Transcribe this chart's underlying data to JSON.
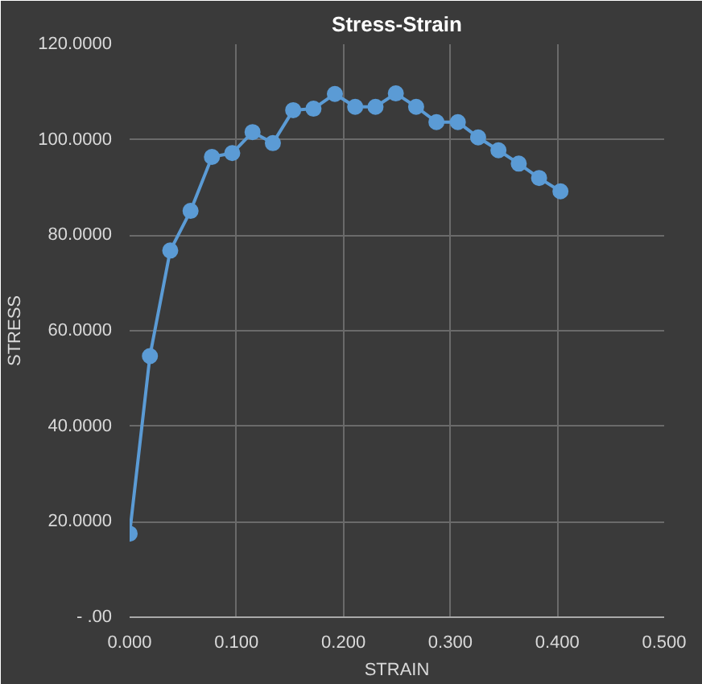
{
  "chart_data": {
    "type": "line",
    "title": "Stress-Strain",
    "xlabel": "STRAIN",
    "ylabel": "STRESS",
    "x": [
      0,
      0.019,
      0.038,
      0.057,
      0.077,
      0.096,
      0.115,
      0.134,
      0.153,
      0.172,
      0.192,
      0.211,
      0.23,
      0.249,
      0.268,
      0.287,
      0.307,
      0.326,
      0.345,
      0.364,
      0.383,
      0.403
    ],
    "series": [
      {
        "color": "#5b9bd5",
        "values": [
          17.5,
          54.7,
          76.8,
          85.1,
          96.4,
          97.2,
          101.6,
          99.3,
          106.2,
          106.5,
          109.6,
          106.9,
          106.9,
          109.7,
          106.9,
          103.7,
          103.7,
          100.5,
          97.8,
          95.0,
          92.0,
          89.2
        ]
      }
    ],
    "xlim": [
      0,
      0.5
    ],
    "xticks": [
      {
        "value": 0,
        "label": "0.000"
      },
      {
        "value": 0.1,
        "label": "0.100"
      },
      {
        "value": 0.2,
        "label": "0.200"
      },
      {
        "value": 0.3,
        "label": "0.300"
      },
      {
        "value": 0.4,
        "label": "0.400"
      },
      {
        "value": 0.5,
        "label": "0.500"
      }
    ],
    "ylim": [
      0,
      120
    ],
    "yticks": [
      {
        "value": 0,
        "label": "- .00"
      },
      {
        "value": 20,
        "label": "20.0000"
      },
      {
        "value": 40,
        "label": "40.0000"
      },
      {
        "value": 60,
        "label": "60.0000"
      },
      {
        "value": 80,
        "label": "80.0000"
      },
      {
        "value": 100,
        "label": "100.0000"
      },
      {
        "value": 120,
        "label": "120.0000"
      }
    ],
    "grid": true,
    "marker": "circle",
    "line_style": "solid"
  }
}
